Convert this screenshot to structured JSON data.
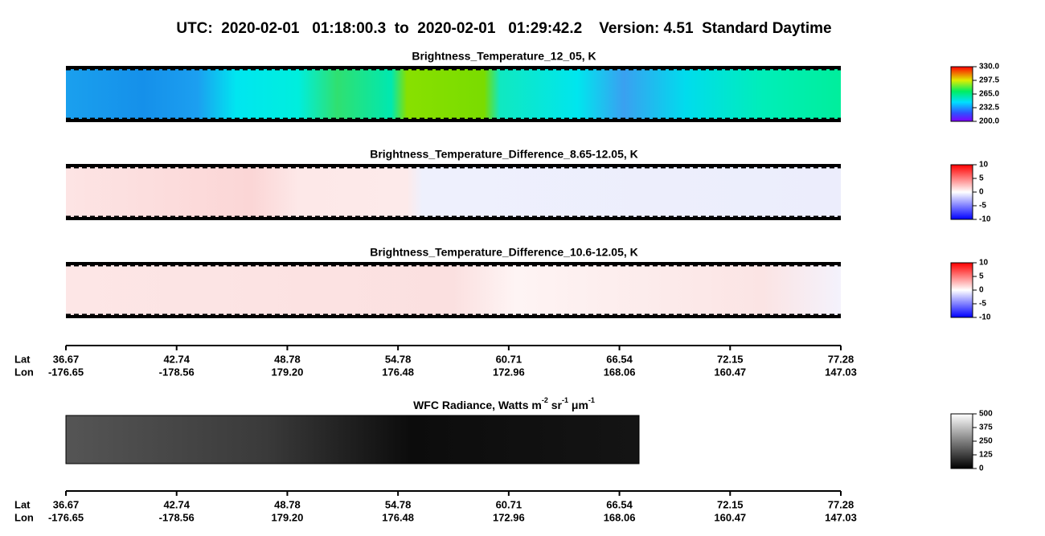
{
  "title": "UTC:  2020-02-01   01:18:00.3  to  2020-02-01   01:29:42.2    Version: 4.51  Standard Daytime",
  "panels": [
    {
      "title": "Brightness_Temperature_12_05, K",
      "colorbar": [
        "330.0",
        "297.5",
        "265.0",
        "232.5",
        "200.0"
      ]
    },
    {
      "title": "Brightness_Temperature_Difference_8.65-12.05, K",
      "colorbar": [
        "10",
        "5",
        "0",
        "-5",
        "-10"
      ]
    },
    {
      "title": "Brightness_Temperature_Difference_10.6-12.05, K",
      "colorbar": [
        "10",
        "5",
        "0",
        "-5",
        "-10"
      ]
    }
  ],
  "axis": {
    "lat_label": "Lat",
    "lon_label": "Lon",
    "lat": [
      "36.67",
      "42.74",
      "48.78",
      "54.78",
      "60.71",
      "66.54",
      "72.15",
      "77.28"
    ],
    "lon": [
      "-176.65",
      "-178.56",
      "179.20",
      "176.48",
      "172.96",
      "168.06",
      "160.47",
      "147.03"
    ]
  },
  "wfc": {
    "title_parts": [
      "WFC Radiance, Watts m",
      "-2",
      " sr",
      "-1",
      " μm",
      "-1"
    ],
    "colorbar": [
      "500",
      "375",
      "250",
      "125",
      "0"
    ]
  }
}
